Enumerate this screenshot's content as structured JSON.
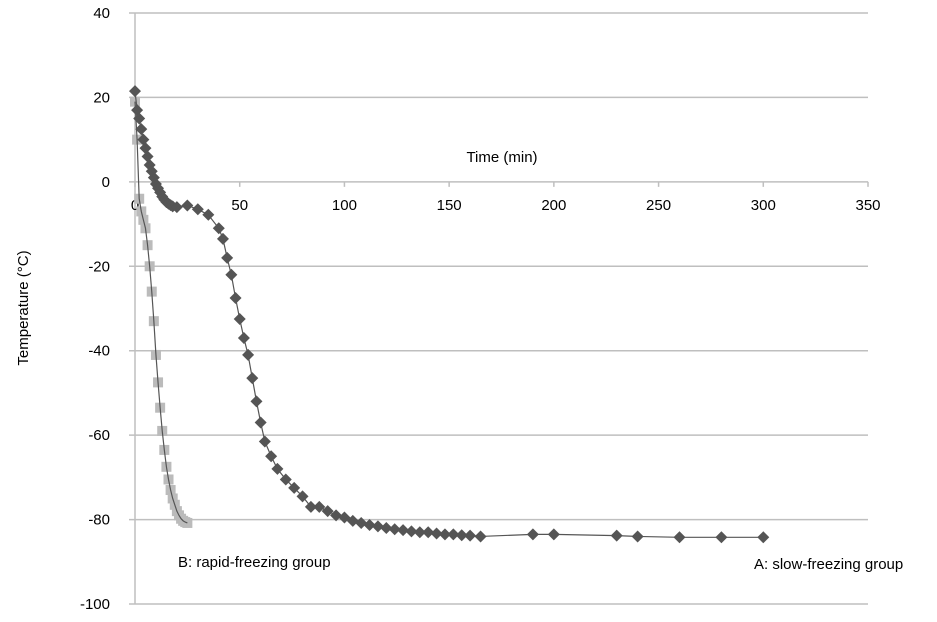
{
  "chart_data": {
    "type": "line",
    "title": "",
    "xlabel": "Time (min)",
    "ylabel": "Temperature (°C)",
    "xlim": [
      0,
      350
    ],
    "ylim": [
      -100,
      40
    ],
    "x_ticks": [
      "0",
      "50",
      "100",
      "150",
      "200",
      "250",
      "300",
      "350"
    ],
    "y_ticks": [
      "40",
      "20",
      "0",
      "-20",
      "-40",
      "-60",
      "-80",
      "-100"
    ],
    "x_tick_values": [
      0,
      50,
      100,
      150,
      200,
      250,
      300,
      350
    ],
    "y_tick_values": [
      40,
      20,
      0,
      -20,
      -40,
      -60,
      -80,
      -100
    ],
    "grid": "horizontal",
    "legend": "none",
    "annotations": [
      {
        "text": "B: rapid-freezing group",
        "x": 20,
        "y": -90
      },
      {
        "text": "A: slow-freezing group",
        "x": 298,
        "y": -90
      }
    ],
    "series": [
      {
        "name": "A: slow-freezing group",
        "marker": "diamond",
        "color": "#555555",
        "x": [
          0,
          1,
          2,
          3,
          4,
          5,
          6,
          7,
          8,
          9,
          10,
          11,
          12,
          13,
          14,
          15,
          16,
          17,
          18,
          20,
          25,
          30,
          35,
          40,
          42,
          44,
          46,
          48,
          50,
          52,
          54,
          56,
          58,
          60,
          62,
          65,
          68,
          72,
          76,
          80,
          84,
          88,
          92,
          96,
          100,
          104,
          108,
          112,
          116,
          120,
          124,
          128,
          132,
          136,
          140,
          144,
          148,
          152,
          156,
          160,
          165,
          190,
          200,
          230,
          240,
          260,
          280,
          300
        ],
        "values": [
          21.5,
          17,
          15,
          12.5,
          10,
          8,
          6,
          4,
          2.5,
          1,
          -0.5,
          -1.5,
          -2.5,
          -3.5,
          -4.2,
          -4.8,
          -5.2,
          -5.5,
          -5.8,
          -6,
          -5.6,
          -6.5,
          -7.8,
          -11,
          -13.5,
          -18,
          -22,
          -27.5,
          -32.5,
          -37,
          -41,
          -46.5,
          -52,
          -57,
          -61.5,
          -65,
          -68,
          -70.5,
          -72.5,
          -74.5,
          -77,
          -77,
          -78,
          -79,
          -79.5,
          -80.3,
          -80.8,
          -81.3,
          -81.6,
          -82,
          -82.3,
          -82.5,
          -82.8,
          -83,
          -83,
          -83.3,
          -83.5,
          -83.5,
          -83.7,
          -83.8,
          -84,
          -83.5,
          -83.5,
          -83.8,
          -84,
          -84.2,
          -84.2,
          -84.2
        ]
      },
      {
        "name": "B: rapid-freezing group",
        "marker": "square",
        "color": "#bbbbbb",
        "x": [
          0,
          1,
          2,
          3,
          4,
          5,
          6,
          7,
          8,
          9,
          10,
          11,
          12,
          13,
          14,
          15,
          16,
          17,
          18,
          19,
          20,
          21,
          22,
          23,
          24,
          25
        ],
        "values": [
          19,
          10,
          -4,
          -7,
          -9,
          -11,
          -15,
          -20,
          -26,
          -33,
          -41,
          -47.5,
          -53.5,
          -59,
          -63.5,
          -67.5,
          -70.5,
          -73,
          -75,
          -76.5,
          -78,
          -79,
          -79.8,
          -80.3,
          -80.6,
          -80.8
        ]
      }
    ]
  }
}
